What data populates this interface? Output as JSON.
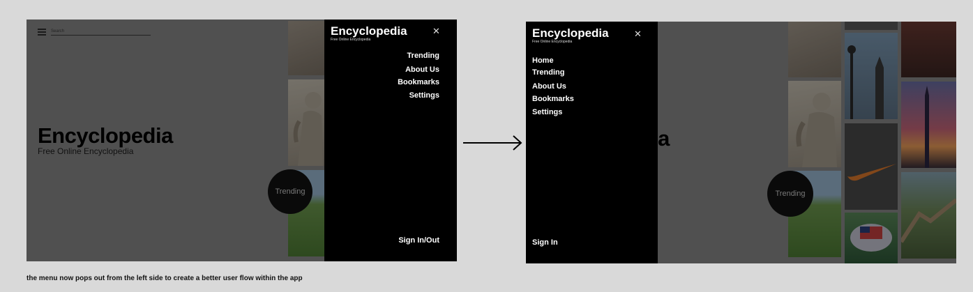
{
  "before": {
    "search_placeholder": "Search",
    "hero_title": "Encyclopedia",
    "hero_subtitle": "Free Online Encyclopedia",
    "trending_bubble": "Trending",
    "menu": {
      "title": "Encyclopedia",
      "subtitle": "Free Online Encyclopedia",
      "close_icon": "close-icon",
      "items": [
        "Trending",
        "About Us",
        "Bookmarks",
        "Settings"
      ],
      "footer": "Sign In/Out"
    }
  },
  "after": {
    "hero_title_partial": "ia",
    "trending_bubble": "Trending",
    "menu": {
      "title": "Encyclopedia",
      "subtitle": "Free Online Encyclopedia",
      "close_icon": "close-icon",
      "items": [
        "Home",
        "Trending",
        "About Us",
        "Bookmarks",
        "Settings"
      ],
      "footer": "Sign In"
    }
  },
  "caption": "the menu now pops out from the left side to create a better user flow within the app",
  "colors": {
    "canvas": "#d9d9d9",
    "menu_background": "#000000",
    "menu_text": "#ffffff",
    "overlay": "#8a8a8a"
  }
}
